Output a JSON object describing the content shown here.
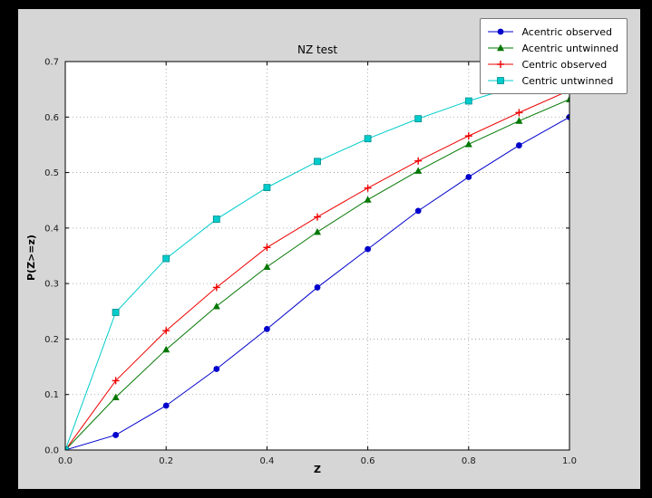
{
  "figure": {
    "colors": {
      "outer_bg": "#000000",
      "figure_bg": "#d6d6d6",
      "axes_bg": "#ffffff",
      "grid": "#9a9a9a",
      "spine": "#000000"
    }
  },
  "chart_data": {
    "type": "line",
    "title": "NZ test",
    "xlabel": "Z",
    "ylabel": "P(Z>=z)",
    "xlim": [
      0.0,
      1.0
    ],
    "ylim": [
      0.0,
      0.7
    ],
    "xticks": [
      0.0,
      0.2,
      0.4,
      0.6,
      0.8,
      1.0
    ],
    "yticks": [
      0.0,
      0.1,
      0.2,
      0.3,
      0.4,
      0.5,
      0.6,
      0.7
    ],
    "xtick_labels": [
      "0.0",
      "0.2",
      "0.4",
      "0.6",
      "0.8",
      "1.0"
    ],
    "ytick_labels": [
      "0.0",
      "0.1",
      "0.2",
      "0.3",
      "0.4",
      "0.5",
      "0.6",
      "0.7"
    ],
    "grid": true,
    "legend_position": "upper right",
    "x": [
      0.0,
      0.1,
      0.2,
      0.3,
      0.4,
      0.5,
      0.6,
      0.7,
      0.8,
      0.9,
      1.0
    ],
    "series": [
      {
        "name": "Acentric observed",
        "color": "#0000cc",
        "marker": "circle",
        "values": [
          0.0,
          0.027,
          0.08,
          0.146,
          0.218,
          0.293,
          0.362,
          0.431,
          0.492,
          0.549,
          0.6
        ]
      },
      {
        "name": "Acentric untwinned",
        "color": "#007700",
        "marker": "triangle",
        "values": [
          0.0,
          0.095,
          0.181,
          0.259,
          0.33,
          0.393,
          0.451,
          0.503,
          0.551,
          0.593,
          0.632
        ]
      },
      {
        "name": "Centric observed",
        "color": "#ee0000",
        "marker": "plus",
        "values": [
          0.0,
          0.125,
          0.215,
          0.293,
          0.365,
          0.42,
          0.472,
          0.521,
          0.566,
          0.608,
          0.648
        ]
      },
      {
        "name": "Centric untwinned",
        "color": "#00cccc",
        "marker": "square",
        "values": [
          0.0,
          0.248,
          0.345,
          0.416,
          0.473,
          0.52,
          0.561,
          0.597,
          0.629,
          0.657,
          0.683
        ]
      }
    ]
  }
}
